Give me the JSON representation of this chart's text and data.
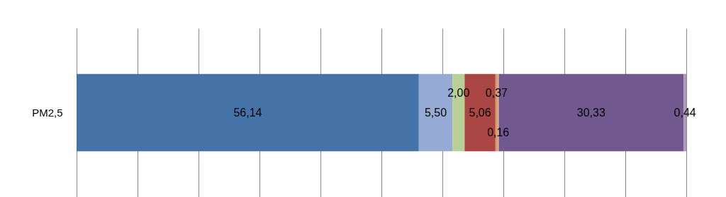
{
  "chart_data": {
    "type": "bar",
    "orientation": "horizontal",
    "stacked": true,
    "categories": [
      "PM2,5"
    ],
    "xlim": [
      0,
      100
    ],
    "xticks": [
      {
        "value": 0,
        "label": null
      },
      {
        "value": 10,
        "label": null
      },
      {
        "value": 20,
        "label": null
      },
      {
        "value": 30,
        "label": null
      },
      {
        "value": 40,
        "label": null
      },
      {
        "value": 50,
        "label": null
      },
      {
        "value": 60,
        "label": null
      },
      {
        "value": 70,
        "label": null
      },
      {
        "value": 80,
        "label": null
      },
      {
        "value": 90,
        "label": null
      },
      {
        "value": 100,
        "label": null
      }
    ],
    "grid": "x",
    "tick_labels": "y",
    "series": [
      {
        "color": "#4572a7",
        "values": [
          56.14
        ],
        "value_labels": [
          "56,14"
        ]
      },
      {
        "color": "#95abd3",
        "values": [
          5.5
        ],
        "value_labels": [
          "5,50"
        ]
      },
      {
        "color": "#b9cf96",
        "values": [
          2.0
        ],
        "value_labels": [
          "2,00"
        ]
      },
      {
        "color": "#aa4643",
        "values": [
          5.06
        ],
        "value_labels": [
          "5,06"
        ]
      },
      {
        "color": "#db9a62",
        "values": [
          0.37
        ],
        "value_labels": [
          "0,37"
        ]
      },
      {
        "color": "#e3b7a8",
        "values": [
          0.16
        ],
        "value_labels": [
          "0,16"
        ]
      },
      {
        "color": "#71588f",
        "values": [
          30.33
        ],
        "value_labels": [
          "30,33"
        ]
      },
      {
        "color": "#a99bbd",
        "values": [
          0.44
        ],
        "value_labels": [
          "0,44"
        ]
      }
    ]
  }
}
